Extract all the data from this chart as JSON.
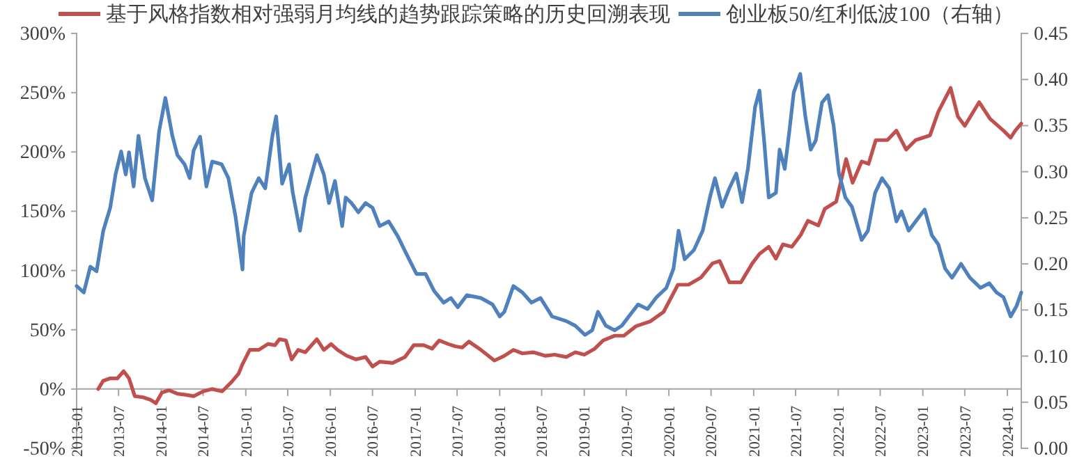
{
  "chart_data": {
    "type": "line",
    "legend": "top",
    "grid": false,
    "marker": "none",
    "line_style": "solid",
    "xlim": [
      "2013-01-01",
      "2024-03-01"
    ],
    "xticks": [
      "2013-01",
      "2013-07",
      "2014-01",
      "2014-07",
      "2015-01",
      "2015-07",
      "2016-01",
      "2016-07",
      "2017-01",
      "2017-07",
      "2018-01",
      "2018-07",
      "2019-01",
      "2019-07",
      "2020-01",
      "2020-07",
      "2021-01",
      "2021-07",
      "2022-01",
      "2022-07",
      "2023-01",
      "2023-07",
      "2024-01"
    ],
    "ylim": [
      -50,
      300
    ],
    "yticks": [
      {
        "value": -50,
        "label": "-50%"
      },
      {
        "value": 0,
        "label": "0%"
      },
      {
        "value": 50,
        "label": "50%"
      },
      {
        "value": 100,
        "label": "100%"
      },
      {
        "value": 150,
        "label": "150%"
      },
      {
        "value": 200,
        "label": "200%"
      },
      {
        "value": 250,
        "label": "250%"
      },
      {
        "value": 300,
        "label": "300%"
      }
    ],
    "y2lim": [
      0,
      0.45
    ],
    "y2ticks": [
      {
        "value": 0,
        "label": "0.00"
      },
      {
        "value": 0.05,
        "label": "0.05"
      },
      {
        "value": 0.1,
        "label": "0.10"
      },
      {
        "value": 0.15,
        "label": "0.15"
      },
      {
        "value": 0.2,
        "label": "0.20"
      },
      {
        "value": 0.25,
        "label": "0.25"
      },
      {
        "value": 0.3,
        "label": "0.30"
      },
      {
        "value": 0.35,
        "label": "0.35"
      },
      {
        "value": 0.4,
        "label": "0.40"
      },
      {
        "value": 0.45,
        "label": "0.45"
      }
    ],
    "series": [
      {
        "name": "基于风格指数相对强弱月均线的趋势跟踪策略的历史回溯表现",
        "color": "#c0504d",
        "x": [
          "2013-04-04",
          "2013-04-26",
          "2013-05-26",
          "2013-06-26",
          "2013-07-23",
          "2013-08-15",
          "2013-09-09",
          "2013-10-15",
          "2013-11-15",
          "2013-12-09",
          "2014-01-04",
          "2014-02-04",
          "2014-03-12",
          "2014-04-21",
          "2014-05-21",
          "2014-07-01",
          "2014-08-09",
          "2014-09-21",
          "2014-11-01",
          "2014-12-01",
          "2014-12-18",
          "2015-01-18",
          "2015-02-26",
          "2015-04-07",
          "2015-05-07",
          "2015-05-26",
          "2015-06-23",
          "2015-07-18",
          "2015-08-15",
          "2015-09-15",
          "2015-11-04",
          "2015-12-04",
          "2016-01-04",
          "2016-02-01",
          "2016-03-12",
          "2016-04-21",
          "2016-06-01",
          "2016-07-01",
          "2016-08-01",
          "2016-09-26",
          "2016-11-18",
          "2016-12-26",
          "2017-02-07",
          "2017-03-15",
          "2017-04-15",
          "2017-05-23",
          "2017-06-23",
          "2017-07-23",
          "2017-08-21",
          "2017-10-12",
          "2017-12-09",
          "2018-01-21",
          "2018-03-01",
          "2018-04-09",
          "2018-05-26",
          "2018-07-18",
          "2018-08-26",
          "2018-10-15",
          "2018-11-23",
          "2019-01-01",
          "2019-02-15",
          "2019-03-23",
          "2019-05-12",
          "2019-06-21",
          "2019-08-12",
          "2019-10-12",
          "2019-12-09",
          "2020-02-09",
          "2020-03-26",
          "2020-05-18",
          "2020-07-07",
          "2020-08-07",
          "2020-09-18",
          "2020-11-07",
          "2020-12-26",
          "2021-01-26",
          "2021-03-07",
          "2021-04-07",
          "2021-05-07",
          "2021-06-15",
          "2021-07-23",
          "2021-08-23",
          "2021-10-07",
          "2021-11-04",
          "2021-12-23",
          "2022-02-04",
          "2022-03-04",
          "2022-04-12",
          "2022-05-12",
          "2022-06-12",
          "2022-08-01",
          "2022-09-09",
          "2022-10-21",
          "2022-12-01",
          "2023-02-01",
          "2023-03-09",
          "2023-05-01",
          "2023-06-01",
          "2023-07-01",
          "2023-09-01",
          "2023-10-18",
          "2023-12-15",
          "2024-01-15",
          "2024-02-04",
          "2024-03-01"
        ],
        "values": [
          0,
          7,
          9,
          9,
          15,
          9,
          -6,
          -7,
          -9,
          -12,
          -3,
          -1,
          -4,
          -5,
          -6,
          -2,
          0,
          -2,
          6,
          13,
          21,
          33,
          33,
          38,
          37,
          42,
          41,
          25,
          33,
          31,
          42,
          33,
          38,
          33,
          28,
          25,
          27,
          19,
          23,
          22,
          27,
          37,
          37,
          34,
          41,
          38,
          36,
          35,
          40,
          33,
          24,
          28,
          33,
          30,
          31,
          28,
          29,
          27,
          31,
          29,
          34,
          41,
          45,
          45,
          53,
          57,
          65,
          88,
          88,
          94,
          106,
          108,
          90,
          90,
          106,
          114,
          120,
          110,
          122,
          120,
          130,
          142,
          138,
          152,
          158,
          194,
          174,
          192,
          190,
          210,
          210,
          218,
          202,
          210,
          214,
          234,
          254,
          230,
          222,
          242,
          228,
          218,
          212,
          218,
          224
        ]
      },
      {
        "name": "创业板50/红利低波100（右轴）",
        "color": "#4f81bd",
        "axis": "y2",
        "x": [
          "2013-01-01",
          "2013-02-01",
          "2013-03-01",
          "2013-03-28",
          "2013-04-26",
          "2013-05-26",
          "2013-06-18",
          "2013-07-12",
          "2013-08-01",
          "2013-08-15",
          "2013-09-04",
          "2013-09-25",
          "2013-10-23",
          "2013-11-23",
          "2013-12-23",
          "2014-01-19",
          "2014-02-18",
          "2014-03-12",
          "2014-04-12",
          "2014-05-04",
          "2014-05-21",
          "2014-06-18",
          "2014-07-15",
          "2014-08-09",
          "2014-09-19",
          "2014-10-18",
          "2014-11-18",
          "2014-12-18",
          "2014-12-23",
          "2015-01-26",
          "2015-02-26",
          "2015-03-26",
          "2015-04-26",
          "2015-05-12",
          "2015-06-07",
          "2015-07-07",
          "2015-07-23",
          "2015-08-23",
          "2015-09-15",
          "2015-11-04",
          "2015-12-04",
          "2015-12-26",
          "2016-01-21",
          "2016-02-21",
          "2016-03-07",
          "2016-04-01",
          "2016-05-01",
          "2016-06-01",
          "2016-07-01",
          "2016-08-01",
          "2016-09-09",
          "2016-10-18",
          "2016-11-26",
          "2017-01-07",
          "2017-02-15",
          "2017-03-23",
          "2017-05-04",
          "2017-06-04",
          "2017-07-04",
          "2017-08-12",
          "2017-10-12",
          "2017-12-01",
          "2018-01-01",
          "2018-01-21",
          "2018-03-01",
          "2018-04-09",
          "2018-05-18",
          "2018-06-26",
          "2018-08-15",
          "2018-10-15",
          "2018-11-23",
          "2019-01-04",
          "2019-02-04",
          "2019-03-01",
          "2019-04-04",
          "2019-05-12",
          "2019-06-12",
          "2019-07-12",
          "2019-08-21",
          "2019-10-01",
          "2019-11-09",
          "2019-12-21",
          "2020-01-21",
          "2020-02-12",
          "2020-03-09",
          "2020-04-18",
          "2020-05-26",
          "2020-06-26",
          "2020-07-18",
          "2020-08-18",
          "2020-09-18",
          "2020-10-18",
          "2020-11-12",
          "2020-12-07",
          "2021-01-07",
          "2021-01-26",
          "2021-02-15",
          "2021-03-07",
          "2021-04-07",
          "2021-04-23",
          "2021-05-15",
          "2021-06-04",
          "2021-06-23",
          "2021-07-21",
          "2021-08-12",
          "2021-09-04",
          "2021-09-26",
          "2021-10-23",
          "2021-11-18",
          "2021-12-12",
          "2022-01-04",
          "2022-02-01",
          "2022-03-01",
          "2022-04-12",
          "2022-05-09",
          "2022-06-09",
          "2022-07-09",
          "2022-08-09",
          "2022-09-09",
          "2022-10-01",
          "2022-11-01",
          "2022-12-01",
          "2023-01-09",
          "2023-02-09",
          "2023-03-09",
          "2023-04-07",
          "2023-05-07",
          "2023-06-15",
          "2023-07-23",
          "2023-09-07",
          "2023-10-15",
          "2023-11-15",
          "2023-12-15",
          "2024-01-15",
          "2024-02-09",
          "2024-03-01"
        ],
        "values": [
          0.176,
          0.169,
          0.197,
          0.192,
          0.236,
          0.261,
          0.297,
          0.322,
          0.297,
          0.321,
          0.284,
          0.339,
          0.293,
          0.269,
          0.344,
          0.38,
          0.339,
          0.318,
          0.308,
          0.293,
          0.323,
          0.338,
          0.284,
          0.311,
          0.308,
          0.293,
          0.251,
          0.194,
          0.23,
          0.277,
          0.293,
          0.282,
          0.339,
          0.36,
          0.287,
          0.308,
          0.277,
          0.236,
          0.272,
          0.318,
          0.297,
          0.266,
          0.29,
          0.241,
          0.272,
          0.266,
          0.256,
          0.266,
          0.261,
          0.241,
          0.246,
          0.23,
          0.21,
          0.189,
          0.189,
          0.171,
          0.158,
          0.163,
          0.153,
          0.166,
          0.163,
          0.156,
          0.143,
          0.148,
          0.176,
          0.169,
          0.158,
          0.163,
          0.143,
          0.138,
          0.133,
          0.123,
          0.128,
          0.148,
          0.133,
          0.128,
          0.133,
          0.143,
          0.156,
          0.151,
          0.164,
          0.174,
          0.195,
          0.236,
          0.205,
          0.215,
          0.236,
          0.272,
          0.293,
          0.262,
          0.282,
          0.298,
          0.267,
          0.303,
          0.37,
          0.388,
          0.334,
          0.272,
          0.277,
          0.324,
          0.303,
          0.344,
          0.386,
          0.406,
          0.36,
          0.324,
          0.334,
          0.375,
          0.383,
          0.35,
          0.298,
          0.272,
          0.262,
          0.226,
          0.236,
          0.277,
          0.293,
          0.282,
          0.246,
          0.257,
          0.236,
          0.246,
          0.259,
          0.231,
          0.221,
          0.195,
          0.185,
          0.2,
          0.185,
          0.174,
          0.179,
          0.169,
          0.164,
          0.143,
          0.154,
          0.169
        ]
      }
    ]
  }
}
